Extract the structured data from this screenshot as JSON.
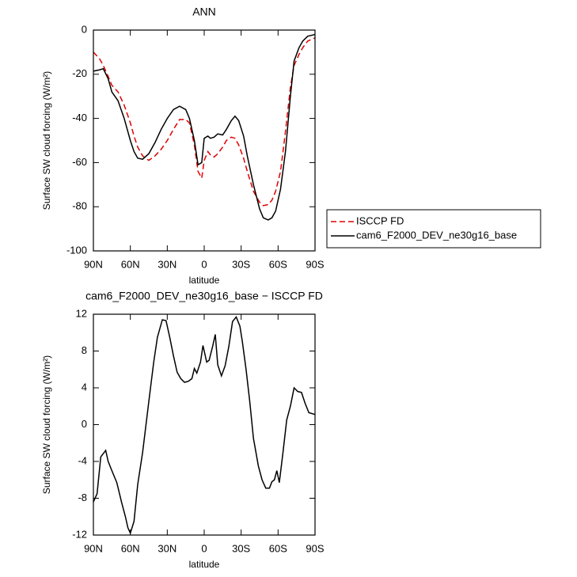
{
  "chart_data": [
    {
      "type": "line",
      "title": "ANN",
      "xlabel": "latitude",
      "ylabel": "Surface SW cloud forcing (W/m²)",
      "x": [
        90,
        85,
        82,
        78,
        75,
        70,
        65,
        60,
        57,
        54,
        50,
        45,
        40,
        35,
        30,
        25,
        20,
        15,
        12,
        8,
        5,
        2,
        0,
        -3,
        -5,
        -8,
        -11,
        -15,
        -18,
        -22,
        -25,
        -28,
        -32,
        -35,
        -40,
        -45,
        -48,
        -52,
        -55,
        -58,
        -62,
        -66,
        -70,
        -73,
        -77,
        -80,
        -84,
        -90
      ],
      "series": [
        {
          "name": "ISCCP FD",
          "color": "#e00000",
          "style": "dashed",
          "values": [
            -10,
            -13,
            -16,
            -21,
            -25,
            -28,
            -34,
            -42,
            -48,
            -53,
            -57,
            -59,
            -57,
            -54,
            -50,
            -45,
            -40.5,
            -40.5,
            -42,
            -52,
            -64,
            -67,
            -59,
            -55,
            -56.5,
            -57.5,
            -56,
            -53,
            -50,
            -48.5,
            -49,
            -52,
            -58,
            -64,
            -73,
            -78,
            -79.5,
            -79,
            -77,
            -73,
            -64,
            -46,
            -26,
            -16,
            -11,
            -8,
            -5,
            -3.5
          ]
        },
        {
          "name": "cam6_F2000_DEV_ne30g16_base",
          "color": "#000000",
          "style": "solid",
          "values": [
            -18.6,
            -18,
            -17.5,
            -22,
            -28,
            -32,
            -40,
            -50,
            -55,
            -58,
            -58.5,
            -56,
            -51,
            -45,
            -40,
            -36,
            -34.5,
            -36,
            -40,
            -50,
            -61,
            -60,
            -49,
            -48,
            -49,
            -48.5,
            -47,
            -47.5,
            -45,
            -41,
            -39,
            -41,
            -48,
            -57,
            -70,
            -81,
            -85,
            -86,
            -85,
            -82,
            -72,
            -55,
            -30,
            -14,
            -8,
            -5,
            -2.8,
            -2
          ]
        }
      ],
      "legend": "right",
      "xlim": [
        90,
        -90
      ],
      "xticks": [
        {
          "value": 90,
          "label": "90N"
        },
        {
          "value": 60,
          "label": "60N"
        },
        {
          "value": 30,
          "label": "30N"
        },
        0,
        {
          "value": -30,
          "label": "30S"
        },
        {
          "value": -60,
          "label": "60S"
        },
        {
          "value": -90,
          "label": "90S"
        }
      ],
      "ylim": [
        -100,
        0
      ],
      "yticks": [
        -100,
        -80,
        -60,
        -40,
        -20,
        0
      ]
    },
    {
      "type": "line",
      "title": "cam6_F2000_DEV_ne30g16_base − ISCCP FD",
      "xlabel": "latitude",
      "ylabel": "Surface SW cloud forcing (W/m²)",
      "x": [
        90,
        87,
        84,
        80,
        78,
        75,
        71,
        67,
        64,
        62,
        60,
        57,
        54,
        50,
        45,
        41,
        38,
        34,
        31,
        28,
        25,
        22,
        19,
        16,
        13,
        10,
        8,
        6,
        3,
        1,
        -2,
        -4,
        -7,
        -9,
        -11,
        -14,
        -17,
        -20,
        -23,
        -26,
        -29,
        -31,
        -34,
        -37,
        -40,
        -44,
        -47,
        -50,
        -53,
        -55,
        -57,
        -59,
        -61,
        -64,
        -67,
        -70,
        -73,
        -76,
        -79,
        -82,
        -85,
        -90
      ],
      "series": [
        {
          "color": "#000000",
          "style": "solid",
          "values": [
            -8.4,
            -7.5,
            -3.5,
            -2.8,
            -4,
            -5,
            -6.3,
            -8.5,
            -10,
            -11.2,
            -11.8,
            -10.5,
            -6.5,
            -3,
            2.5,
            6.8,
            9.5,
            11.4,
            11.3,
            9.5,
            7.5,
            5.7,
            5,
            4.6,
            4.7,
            5,
            6.1,
            5.6,
            6.8,
            8.6,
            6.8,
            7,
            8.6,
            9.8,
            6.5,
            5.3,
            6.4,
            8.5,
            11.2,
            11.7,
            10.7,
            9,
            6,
            2.5,
            -1.5,
            -4.5,
            -6,
            -6.9,
            -6.9,
            -6.2,
            -6,
            -5,
            -6.3,
            -3,
            0.5,
            2,
            4,
            3.6,
            3.5,
            2.3,
            1.3,
            1.1
          ]
        }
      ],
      "xlim": [
        90,
        -90
      ],
      "xticks": [
        {
          "value": 90,
          "label": "90N"
        },
        {
          "value": 60,
          "label": "60N"
        },
        {
          "value": 30,
          "label": "30N"
        },
        0,
        {
          "value": -30,
          "label": "30S"
        },
        {
          "value": -60,
          "label": "60S"
        },
        {
          "value": -90,
          "label": "90S"
        }
      ],
      "ylim": [
        -12,
        12
      ],
      "yticks": [
        -12,
        -8,
        -4,
        0,
        4,
        8,
        12
      ]
    }
  ]
}
